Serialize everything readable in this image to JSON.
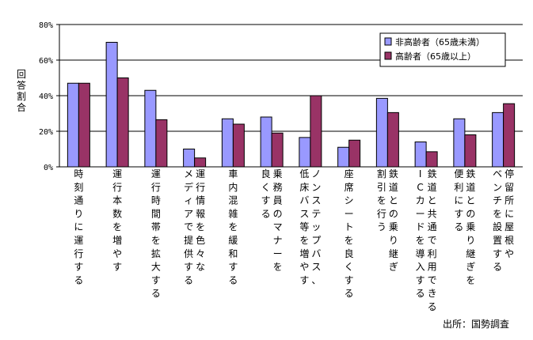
{
  "chart_data": {
    "type": "bar",
    "title": "",
    "ylabel": "回答割合",
    "ylim": [
      0,
      80
    ],
    "yticks": [
      "0%",
      "20%",
      "40%",
      "60%",
      "80%"
    ],
    "grid": true,
    "legend_position": "top-right",
    "categories": [
      "時刻通りに運行する",
      "運行本数を増やす",
      "運行時間帯を拡大する",
      "運行情報を色々なメディアで提供する",
      "車内混雑を緩和する",
      "乗務員のマナーを良くする",
      "ノンステップバス、低床バス等を増やす",
      "座席シートを良くする",
      "鉄道との乗り継ぎ割引を行う",
      "鉄道と共通で利用できるICカードを導入する",
      "鉄道との乗り継ぎを便利にする",
      "停留所に屋根やベンチを設置する"
    ],
    "category_lines": [
      [
        "時刻通りに運行する"
      ],
      [
        "運行本数を増やす"
      ],
      [
        "運行時間帯を拡大する"
      ],
      [
        "運行情報を色々な",
        "メディアで提供する"
      ],
      [
        "車内混雑を緩和する"
      ],
      [
        "乗務員のマナーを",
        "良くする"
      ],
      [
        "ノンステップバス、",
        "低床バス等を増やす"
      ],
      [
        "座席シートを良くする"
      ],
      [
        "鉄道との乗り継ぎ",
        "割引を行う"
      ],
      [
        "鉄道と共通で利用できる",
        "ICカードを導入する"
      ],
      [
        "鉄道との乗り継ぎを",
        "便利にする"
      ],
      [
        "停留所に屋根や",
        "ベンチを設置する"
      ]
    ],
    "series": [
      {
        "name": "非高齢者（65歳未満）",
        "color": "#9999ff",
        "values": [
          47,
          70,
          43,
          10,
          27,
          28,
          16.5,
          11,
          38.5,
          14,
          27,
          30.5
        ]
      },
      {
        "name": "高齢者（65歳以上）",
        "color": "#993366",
        "values": [
          47,
          50,
          26.5,
          5,
          24,
          19,
          40,
          15,
          30.5,
          8.5,
          18,
          35.5
        ]
      }
    ]
  },
  "source_text": "出所：国勢調査"
}
